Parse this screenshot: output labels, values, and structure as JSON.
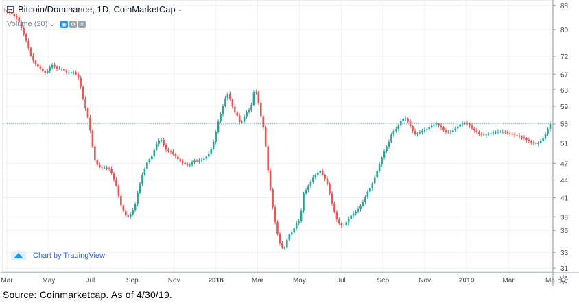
{
  "header": {
    "title": "Bitcoin/Dominance, 1D, CoinMarketCap",
    "volume_label": "Volume (20)"
  },
  "attribution": {
    "text": "Chart by TradingView"
  },
  "footer": {
    "source_note": "Source: Coinmarketcap. As of 4/30/19."
  },
  "colors": {
    "up": "#26a69a",
    "down": "#ef5350",
    "last_price_line": "#5cb8b2",
    "grid": "#eef1f4",
    "axis_text": "#4a4a4a"
  },
  "icons": [
    "collapse-legend-icon",
    "chevron-down-icon",
    "visibility-eye-icon",
    "settings-gear-icon",
    "close-icon",
    "tradingview-logo-icon",
    "chart-settings-gear-icon"
  ],
  "chart_data": {
    "type": "candlestick",
    "title": "Bitcoin/Dominance, 1D, CoinMarketCap",
    "y_ticks": [
      31,
      33,
      36,
      38,
      41,
      44,
      47,
      51,
      55,
      59,
      63,
      67,
      72,
      80,
      88
    ],
    "x_ticks": [
      "Mar",
      "May",
      "Jul",
      "Sep",
      "Nov",
      "2018",
      "Mar",
      "May",
      "Jul",
      "Sep",
      "Nov",
      "2019",
      "Mar",
      "Ma"
    ],
    "x_ticks_bold": [
      false,
      false,
      false,
      false,
      false,
      true,
      false,
      false,
      false,
      false,
      false,
      true,
      false,
      false
    ],
    "ylim": [
      30.5,
      90
    ],
    "y_scale": "log",
    "last_value": 55,
    "grid": true,
    "series": [
      {
        "values": [
          86.5,
          85.8,
          85.6,
          85,
          84.5,
          84,
          82.5,
          80.5,
          78.5,
          76.5,
          74.4,
          72.1,
          70.7,
          69.7,
          69,
          68.5,
          67.9,
          67.4,
          67.9,
          68.8,
          69.5,
          69,
          68.5,
          68.5,
          68.5,
          68,
          67.5,
          67.5,
          67.5,
          67.5,
          67,
          66,
          63.7,
          60.8,
          58.5,
          56.4,
          53.6,
          50.3,
          47.6,
          46.7,
          46.3,
          46.2,
          46.2,
          46.1,
          46,
          45.2,
          44.1,
          43,
          41.3,
          39.8,
          38.9,
          38.2,
          38,
          38.4,
          39,
          40,
          41.8,
          43.4,
          44.9,
          46,
          47.2,
          47.8,
          48.4,
          49.6,
          50.8,
          51.5,
          51.6,
          50.6,
          49.6,
          49.3,
          49.2,
          48.8,
          48.3,
          47.8,
          47.4,
          47.1,
          46.8,
          46.7,
          46.7,
          47.2,
          47.5,
          47.4,
          47.5,
          47.7,
          47.9,
          48.3,
          48.9,
          49.8,
          51.2,
          53.3,
          55.5,
          57.2,
          59,
          60.9,
          62,
          60.6,
          58.9,
          57.6,
          56.8,
          55.4,
          55.5,
          56.6,
          57.6,
          58.2,
          59.3,
          62.4,
          62.4,
          59.8,
          56.7,
          54.2,
          50.3,
          45.7,
          42.4,
          39.5,
          37.2,
          35.5,
          34.2,
          33.6,
          33.6,
          34.7,
          35.4,
          35.7,
          36.3,
          37,
          37.4,
          38.9,
          41.7,
          42.3,
          42.9,
          43.7,
          44.5,
          44.9,
          45.3,
          45.6,
          44.9,
          44.2,
          43.3,
          41.7,
          40.1,
          38.7,
          37.6,
          37,
          36.7,
          36.8,
          37.2,
          37.7,
          38.2,
          38.5,
          38.8,
          39.2,
          39.7,
          40.3,
          41.1,
          42,
          42.6,
          43.4,
          44.5,
          45.6,
          46.8,
          48.1,
          49.3,
          50.2,
          51.2,
          52.7,
          53.5,
          53.9,
          54.6,
          55.7,
          56.2,
          56.2,
          55.5,
          54.5,
          53.5,
          52.8,
          53,
          53.2,
          53.5,
          53.7,
          53.9,
          54.2,
          54.6,
          54.8,
          54.9,
          54.6,
          54.2,
          53.6,
          53.3,
          53.2,
          53.3,
          53.6,
          54,
          54.4,
          54.9,
          55.2,
          55.2,
          55,
          54.6,
          54,
          53.6,
          53.2,
          52.9,
          52.7,
          52.6,
          52.7,
          52.8,
          53,
          53.1,
          53.3,
          53.3,
          53.3,
          53.3,
          53.2,
          53,
          52.9,
          52.8,
          52.6,
          52.5,
          52.3,
          52.1,
          51.9,
          51.6,
          51.3,
          51.1,
          50.9,
          50.8,
          51,
          51.4,
          52,
          52.8,
          53.9,
          55
        ]
      }
    ]
  }
}
